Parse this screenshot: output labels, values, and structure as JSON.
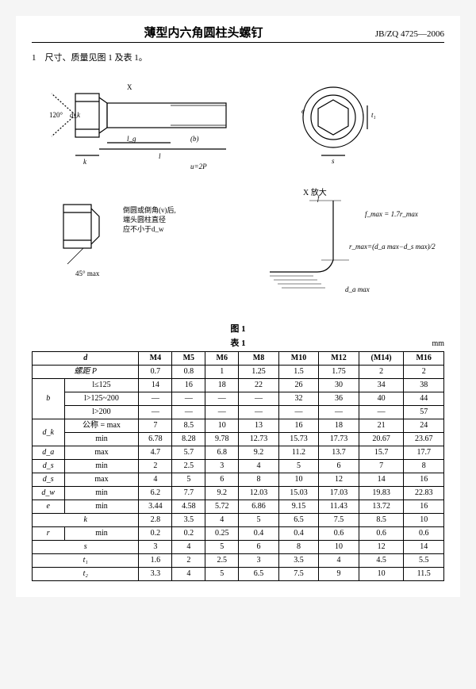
{
  "header": {
    "title": "薄型内六角圆柱头螺钉",
    "standard": "JB/ZQ 4725—2006"
  },
  "intro": "1　尺寸、质量见图 1 及表 1。",
  "diagram": {
    "main_side": {
      "labels": [
        "120°",
        "X",
        "d",
        "d₁",
        "d₂",
        "l_g",
        "(b)",
        "l",
        "k",
        "u=2P"
      ]
    },
    "front": {
      "labels": [
        "e",
        "s",
        "t₁"
      ]
    },
    "detail1": {
      "note": "倒圆或倒角(v)后,\n端头圆柱直径\n应不小于d_w",
      "labels": [
        "d₃",
        "d_w",
        "45° max"
      ]
    },
    "detail2": {
      "title": "X 放大",
      "formula1": "f_max = 1.7r_max",
      "formula2": "r_max = (d_a max − d_s max) / 2",
      "labels": [
        "f",
        "r",
        "d_a max"
      ]
    }
  },
  "fig_caption": "图 1",
  "tbl_caption": "表 1",
  "unit": "mm",
  "table": {
    "columns": [
      "d",
      "M4",
      "M5",
      "M6",
      "M8",
      "M10",
      "M12",
      "(M14)",
      "M16"
    ],
    "rows": [
      {
        "h": [
          "螺距 P",
          ""
        ],
        "span": 2,
        "v": [
          "0.7",
          "0.8",
          "1",
          "1.25",
          "1.5",
          "1.75",
          "2",
          "2"
        ]
      },
      {
        "h": [
          "b",
          "l≤125"
        ],
        "v": [
          "14",
          "16",
          "18",
          "22",
          "26",
          "30",
          "34",
          "38"
        ]
      },
      {
        "h": [
          "",
          "l>125~200"
        ],
        "v": [
          "—",
          "—",
          "—",
          "—",
          "32",
          "36",
          "40",
          "44"
        ]
      },
      {
        "h": [
          "",
          "l>200"
        ],
        "v": [
          "—",
          "—",
          "—",
          "—",
          "—",
          "—",
          "—",
          "57"
        ]
      },
      {
        "h": [
          "d_k",
          "公称 = max"
        ],
        "v": [
          "7",
          "8.5",
          "10",
          "13",
          "16",
          "18",
          "21",
          "24"
        ]
      },
      {
        "h": [
          "",
          "min"
        ],
        "v": [
          "6.78",
          "8.28",
          "9.78",
          "12.73",
          "15.73",
          "17.73",
          "20.67",
          "23.67"
        ]
      },
      {
        "h": [
          "d_a",
          "max"
        ],
        "v": [
          "4.7",
          "5.7",
          "6.8",
          "9.2",
          "11.2",
          "13.7",
          "15.7",
          "17.7"
        ]
      },
      {
        "h": [
          "d_s",
          "min"
        ],
        "v": [
          "2",
          "2.5",
          "3",
          "4",
          "5",
          "6",
          "7",
          "8"
        ]
      },
      {
        "h": [
          "d_s",
          "max"
        ],
        "v": [
          "4",
          "5",
          "6",
          "8",
          "10",
          "12",
          "14",
          "16"
        ]
      },
      {
        "h": [
          "d_w",
          "min"
        ],
        "v": [
          "6.2",
          "7.7",
          "9.2",
          "12.03",
          "15.03",
          "17.03",
          "19.83",
          "22.83"
        ]
      },
      {
        "h": [
          "e",
          "min"
        ],
        "v": [
          "3.44",
          "4.58",
          "5.72",
          "6.86",
          "9.15",
          "11.43",
          "13.72",
          "16"
        ]
      },
      {
        "h": [
          "k",
          ""
        ],
        "span": 2,
        "v": [
          "2.8",
          "3.5",
          "4",
          "5",
          "6.5",
          "7.5",
          "8.5",
          "10"
        ]
      },
      {
        "h": [
          "r",
          "min"
        ],
        "v": [
          "0.2",
          "0.2",
          "0.25",
          "0.4",
          "0.4",
          "0.6",
          "0.6",
          "0.6"
        ]
      },
      {
        "h": [
          "s",
          ""
        ],
        "span": 2,
        "v": [
          "3",
          "4",
          "5",
          "6",
          "8",
          "10",
          "12",
          "14"
        ]
      },
      {
        "h": [
          "t₁",
          ""
        ],
        "span": 2,
        "v": [
          "1.6",
          "2",
          "2.5",
          "3",
          "3.5",
          "4",
          "4.5",
          "5.5"
        ]
      },
      {
        "h": [
          "t₂",
          ""
        ],
        "span": 2,
        "v": [
          "3.3",
          "4",
          "5",
          "6.5",
          "7.5",
          "9",
          "10",
          "11.5"
        ]
      }
    ]
  }
}
